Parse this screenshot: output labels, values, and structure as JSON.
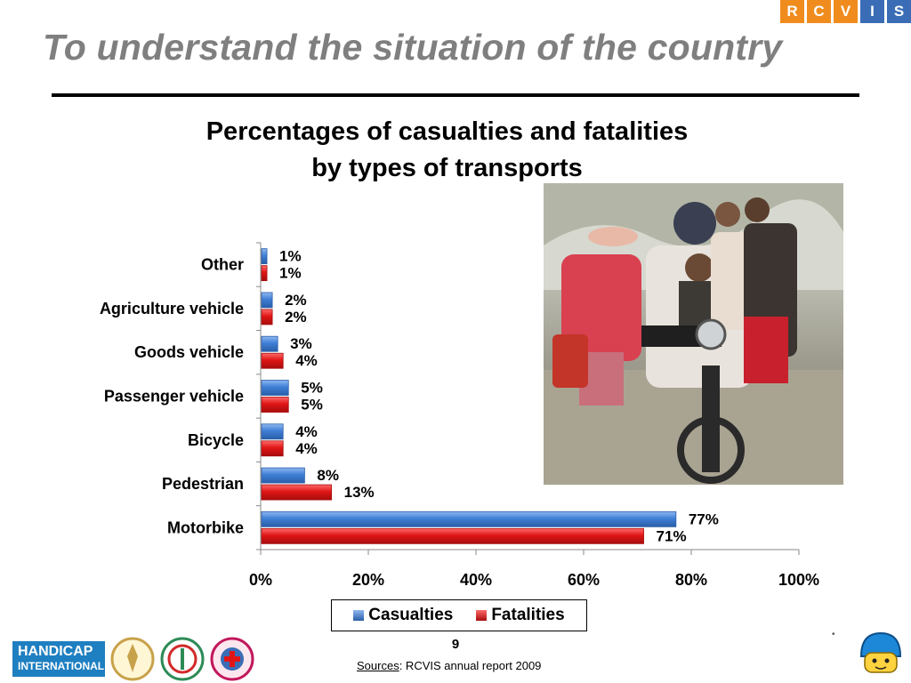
{
  "brand": {
    "letters": [
      "R",
      "C",
      "V",
      "I",
      "S"
    ],
    "orange": "#f08c1e",
    "blue": "#3a6db5"
  },
  "slide_title": "To understand the situation of the country",
  "chart_data": {
    "type": "bar",
    "orientation": "horizontal",
    "title_line1": "Percentages of casualties and fatalities",
    "title_line2": "by types of transports",
    "categories": [
      "Other",
      "Agriculture vehicle",
      "Goods vehicle",
      "Passenger vehicle",
      "Bicycle",
      "Pedestrian",
      "Motorbike"
    ],
    "series": [
      {
        "name": "Casualties",
        "color": "#3f7fd6",
        "values": [
          1,
          2,
          3,
          5,
          4,
          8,
          77
        ],
        "labels": [
          "1%",
          "2%",
          "3%",
          "5%",
          "4%",
          "8%",
          "77%"
        ]
      },
      {
        "name": "Fatalities",
        "color": "#e01616",
        "values": [
          1,
          2,
          4,
          5,
          4,
          13,
          71
        ],
        "labels": [
          "1%",
          "2%",
          "4%",
          "5%",
          "4%",
          "13%",
          "71%"
        ]
      }
    ],
    "xlim": [
      0,
      100
    ],
    "xticks": [
      "0%",
      "20%",
      "40%",
      "60%",
      "80%",
      "100%"
    ],
    "xtick_values": [
      0,
      20,
      40,
      60,
      80,
      100
    ],
    "grid": false,
    "legend_position": "bottom"
  },
  "footer": {
    "logo_text_1": "HANDICAP",
    "logo_text_2": "INTERNATIONAL",
    "page_number": "9",
    "sources_label": "Sources",
    "sources_text": ": RCVIS annual report 2009"
  },
  "icons": [
    "handicap-international-logo",
    "ministry-seal-icon",
    "health-seal-icon",
    "red-cross-seal-icon",
    "helmet-mascot-icon"
  ]
}
